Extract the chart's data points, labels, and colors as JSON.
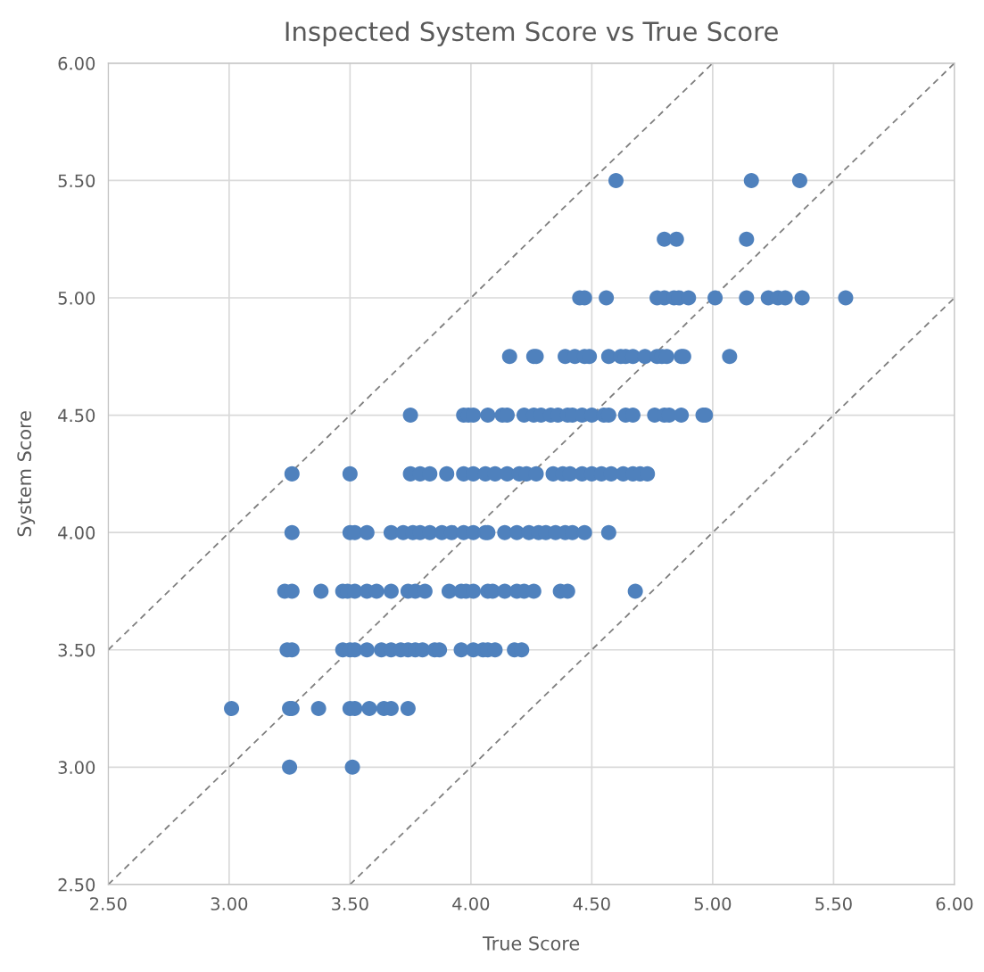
{
  "chart_data": {
    "type": "scatter",
    "title": "Inspected System Score vs True Score",
    "xlabel": "True Score",
    "ylabel": "System Score",
    "xlim": [
      2.5,
      6
    ],
    "ylim": [
      2.5,
      6
    ],
    "xticks": [
      {
        "value": 2.5,
        "label": "2.50"
      },
      {
        "value": 3,
        "label": "3.00"
      },
      {
        "value": 3.5,
        "label": "3.50"
      },
      {
        "value": 4,
        "label": "4.00"
      },
      {
        "value": 4.5,
        "label": "4.50"
      },
      {
        "value": 5,
        "label": "5.00"
      },
      {
        "value": 5.5,
        "label": "5.50"
      },
      {
        "value": 6,
        "label": "6.00"
      }
    ],
    "yticks": [
      {
        "value": 2.5,
        "label": "2.50"
      },
      {
        "value": 3,
        "label": "3.00"
      },
      {
        "value": 3.5,
        "label": "3.50"
      },
      {
        "value": 4,
        "label": "4.00"
      },
      {
        "value": 4.5,
        "label": "4.50"
      },
      {
        "value": 5,
        "label": "5.00"
      },
      {
        "value": 5.5,
        "label": "5.50"
      },
      {
        "value": 6,
        "label": "6.00"
      }
    ],
    "grid": true,
    "marker": "circle",
    "series": [
      {
        "color": "#4f81bd",
        "x": [
          4.6,
          5.16,
          5.36,
          4.8,
          4.85,
          5.14,
          4.45,
          4.47,
          4.56,
          4.77,
          4.8,
          4.84,
          4.86,
          4.9,
          5.01,
          5.14,
          5.23,
          5.27,
          5.3,
          5.37,
          5.55,
          4.16,
          4.26,
          4.27,
          4.39,
          4.43,
          4.47,
          4.49,
          4.57,
          4.62,
          4.64,
          4.67,
          4.72,
          4.77,
          4.79,
          4.81,
          4.87,
          4.88,
          5.07,
          3.75,
          3.97,
          3.99,
          4.01,
          4.07,
          4.13,
          4.15,
          4.22,
          4.26,
          4.29,
          4.33,
          4.36,
          4.4,
          4.42,
          4.46,
          4.5,
          4.55,
          4.57,
          4.64,
          4.67,
          4.76,
          4.8,
          4.82,
          4.87,
          4.96,
          4.97,
          3.26,
          3.5,
          3.75,
          3.79,
          3.83,
          3.9,
          3.97,
          4.01,
          4.06,
          4.1,
          4.15,
          4.2,
          4.23,
          4.27,
          4.34,
          4.38,
          4.41,
          4.46,
          4.5,
          4.54,
          4.58,
          4.63,
          4.67,
          4.7,
          4.73,
          3.26,
          3.5,
          3.52,
          3.57,
          3.67,
          3.72,
          3.76,
          3.79,
          3.83,
          3.88,
          3.92,
          3.97,
          4.01,
          4.06,
          4.07,
          4.14,
          4.19,
          4.24,
          4.28,
          4.31,
          4.35,
          4.39,
          4.42,
          4.47,
          4.57,
          3.23,
          3.26,
          3.38,
          3.47,
          3.49,
          3.52,
          3.57,
          3.61,
          3.67,
          3.74,
          3.77,
          3.81,
          3.91,
          3.96,
          3.98,
          4.01,
          4.07,
          4.09,
          4.14,
          4.19,
          4.22,
          4.26,
          4.37,
          4.4,
          4.68,
          3.24,
          3.26,
          3.47,
          3.5,
          3.52,
          3.57,
          3.63,
          3.67,
          3.71,
          3.74,
          3.77,
          3.8,
          3.85,
          3.87,
          3.96,
          4.01,
          4.05,
          4.07,
          4.1,
          4.18,
          4.21,
          3.01,
          3.25,
          3.26,
          3.37,
          3.5,
          3.52,
          3.58,
          3.64,
          3.67,
          3.74,
          3.25,
          3.51
        ],
        "values": [
          5.5,
          5.5,
          5.5,
          5.25,
          5.25,
          5.25,
          5,
          5,
          5,
          5,
          5,
          5,
          5,
          5,
          5,
          5,
          5,
          5,
          5,
          5,
          5,
          4.75,
          4.75,
          4.75,
          4.75,
          4.75,
          4.75,
          4.75,
          4.75,
          4.75,
          4.75,
          4.75,
          4.75,
          4.75,
          4.75,
          4.75,
          4.75,
          4.75,
          4.75,
          4.5,
          4.5,
          4.5,
          4.5,
          4.5,
          4.5,
          4.5,
          4.5,
          4.5,
          4.5,
          4.5,
          4.5,
          4.5,
          4.5,
          4.5,
          4.5,
          4.5,
          4.5,
          4.5,
          4.5,
          4.5,
          4.5,
          4.5,
          4.5,
          4.5,
          4.5,
          4.25,
          4.25,
          4.25,
          4.25,
          4.25,
          4.25,
          4.25,
          4.25,
          4.25,
          4.25,
          4.25,
          4.25,
          4.25,
          4.25,
          4.25,
          4.25,
          4.25,
          4.25,
          4.25,
          4.25,
          4.25,
          4.25,
          4.25,
          4.25,
          4.25,
          4,
          4,
          4,
          4,
          4,
          4,
          4,
          4,
          4,
          4,
          4,
          4,
          4,
          4,
          4,
          4,
          4,
          4,
          4,
          4,
          4,
          4,
          4,
          4,
          4,
          3.75,
          3.75,
          3.75,
          3.75,
          3.75,
          3.75,
          3.75,
          3.75,
          3.75,
          3.75,
          3.75,
          3.75,
          3.75,
          3.75,
          3.75,
          3.75,
          3.75,
          3.75,
          3.75,
          3.75,
          3.75,
          3.75,
          3.75,
          3.75,
          3.75,
          3.5,
          3.5,
          3.5,
          3.5,
          3.5,
          3.5,
          3.5,
          3.5,
          3.5,
          3.5,
          3.5,
          3.5,
          3.5,
          3.5,
          3.5,
          3.5,
          3.5,
          3.5,
          3.5,
          3.5,
          3.5,
          3.25,
          3.25,
          3.25,
          3.25,
          3.25,
          3.25,
          3.25,
          3.25,
          3.25,
          3.25,
          3,
          3
        ]
      },
      {
        "type": "line",
        "color": "#808080",
        "line_style": "dashed",
        "marker": "none",
        "x": [
          2.5,
          5
        ],
        "values": [
          3.5,
          6
        ]
      },
      {
        "type": "line",
        "color": "#808080",
        "line_style": "dashed",
        "marker": "none",
        "x": [
          2.5,
          6
        ],
        "values": [
          2.5,
          6
        ]
      },
      {
        "type": "line",
        "color": "#808080",
        "line_style": "dashed",
        "marker": "none",
        "x": [
          3.5,
          6
        ],
        "values": [
          2.5,
          5
        ]
      }
    ]
  }
}
